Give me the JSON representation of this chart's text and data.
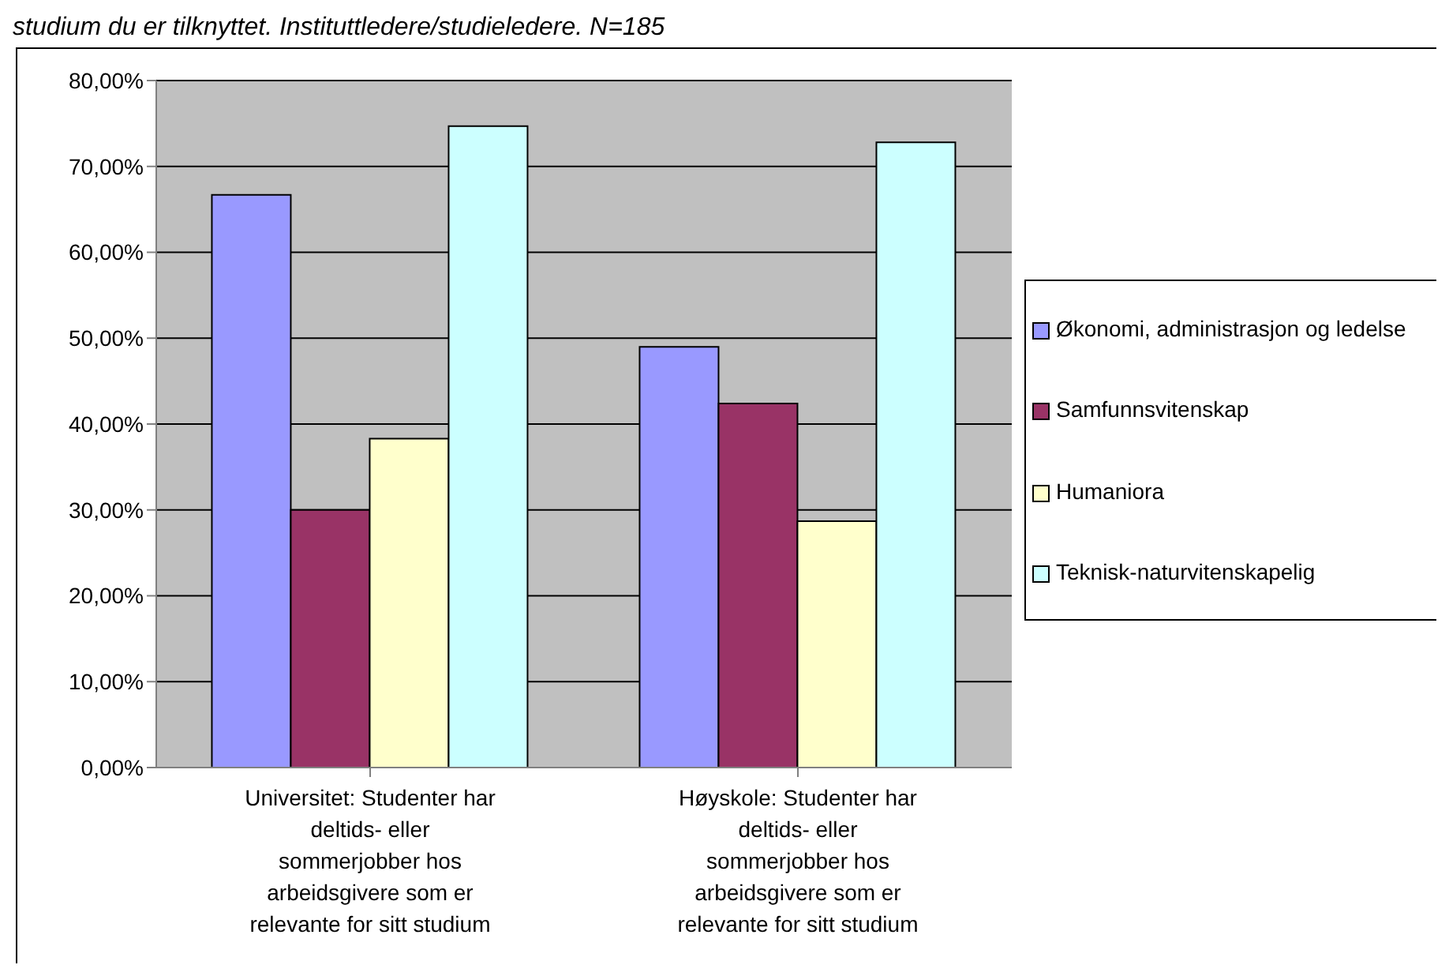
{
  "chart_data": {
    "type": "bar",
    "title": "studium du er tilknyttet. Instituttledere/studieledere. N=185",
    "categories": [
      "Universitet: Studenter har deltids- eller sommerjobber hos arbeidsgivere som er relevante for sitt studium",
      "Høyskole: Studenter har deltids- eller sommerjobber hos arbeidsgivere som er relevante for sitt studium"
    ],
    "series": [
      {
        "name": "Økonomi, administrasjon og ledelse",
        "color": "#9999ff",
        "values": [
          66.7,
          49.0
        ]
      },
      {
        "name": "Samfunnsvitenskap",
        "color": "#993366",
        "values": [
          30.0,
          42.4
        ]
      },
      {
        "name": "Humaniora",
        "color": "#ffffcc",
        "values": [
          38.3,
          28.7
        ]
      },
      {
        "name": "Teknisk-naturvitenskapelig",
        "color": "#ccffff",
        "values": [
          74.7,
          72.8
        ]
      }
    ],
    "ylim": [
      0,
      80
    ],
    "yticks": [
      {
        "value": 0,
        "label": "0,00%"
      },
      {
        "value": 10,
        "label": "10,00%"
      },
      {
        "value": 20,
        "label": "20,00%"
      },
      {
        "value": 30,
        "label": "30,00%"
      },
      {
        "value": 40,
        "label": "40,00%"
      },
      {
        "value": 50,
        "label": "50,00%"
      },
      {
        "value": 60,
        "label": "60,00%"
      },
      {
        "value": 70,
        "label": "70,00%"
      },
      {
        "value": 80,
        "label": "80,00%"
      }
    ],
    "grid": "y",
    "legend": "right"
  }
}
